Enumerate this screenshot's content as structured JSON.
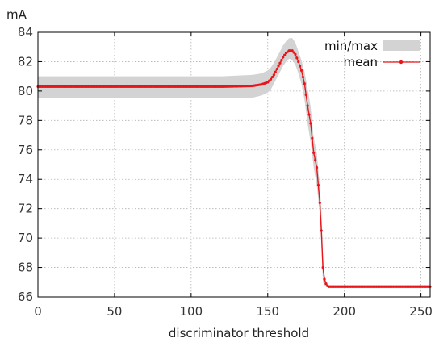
{
  "chart_data": {
    "type": "line",
    "title": "",
    "xlabel": "discriminator threshold",
    "ylabel": "mA",
    "xlim": [
      0,
      256
    ],
    "ylim": [
      66,
      84
    ],
    "xticks": [
      0,
      50,
      100,
      150,
      200,
      250
    ],
    "yticks": [
      66,
      68,
      70,
      72,
      74,
      76,
      78,
      80,
      82,
      84
    ],
    "grid": true,
    "legend": "top-right",
    "colors": {
      "mean": "#e8161b",
      "band": "#d3d3d3",
      "grid": "#b0b0b0",
      "frame": "#000000"
    },
    "legend_entries": {
      "band": "min/max",
      "mean": "mean"
    },
    "series": [
      {
        "name": "mean",
        "x": [
          0,
          20,
          40,
          60,
          80,
          100,
          120,
          140,
          146,
          150,
          152,
          154,
          156,
          158,
          160,
          162,
          164,
          166,
          168,
          170,
          172,
          174,
          176,
          178,
          180,
          182,
          184,
          185,
          186,
          187,
          188,
          189,
          190,
          192,
          194,
          196,
          200,
          220,
          240,
          256
        ],
        "values": [
          80.3,
          80.3,
          80.3,
          80.3,
          80.3,
          80.3,
          80.3,
          80.35,
          80.45,
          80.6,
          80.8,
          81.1,
          81.5,
          81.9,
          82.3,
          82.6,
          82.75,
          82.75,
          82.5,
          82.0,
          81.4,
          80.5,
          79.0,
          77.8,
          75.8,
          74.8,
          72.4,
          70.5,
          68.0,
          67.2,
          66.9,
          66.75,
          66.7,
          66.7,
          66.7,
          66.7,
          66.7,
          66.7,
          66.7,
          66.7
        ]
      },
      {
        "name": "min/max",
        "x": [
          0,
          20,
          40,
          60,
          80,
          100,
          120,
          140,
          146,
          150,
          152,
          154,
          156,
          158,
          160,
          162,
          164,
          166,
          168,
          170,
          172,
          174,
          176,
          178,
          180,
          182,
          184,
          185,
          186,
          187,
          188,
          189,
          190,
          192,
          194,
          196,
          200,
          220,
          240,
          256
        ],
        "min": [
          79.5,
          79.5,
          79.5,
          79.5,
          79.5,
          79.5,
          79.5,
          79.55,
          79.7,
          79.9,
          80.1,
          80.5,
          80.9,
          81.3,
          81.7,
          82.0,
          82.2,
          82.1,
          81.8,
          81.2,
          80.5,
          79.4,
          77.8,
          76.5,
          74.8,
          73.6,
          71.6,
          69.5,
          67.0,
          66.8,
          66.7,
          66.65,
          66.6,
          66.6,
          66.6,
          66.6,
          66.6,
          66.6,
          66.6,
          66.6
        ],
        "max": [
          81.0,
          81.0,
          81.0,
          81.0,
          81.0,
          81.0,
          81.0,
          81.1,
          81.2,
          81.4,
          81.6,
          81.9,
          82.3,
          82.7,
          83.1,
          83.4,
          83.6,
          83.6,
          83.3,
          82.7,
          82.1,
          81.3,
          80.2,
          78.9,
          76.8,
          75.8,
          73.5,
          72.0,
          68.9,
          67.6,
          67.1,
          66.9,
          66.8,
          66.8,
          66.8,
          66.8,
          66.8,
          66.8,
          66.8,
          66.8
        ]
      }
    ]
  }
}
